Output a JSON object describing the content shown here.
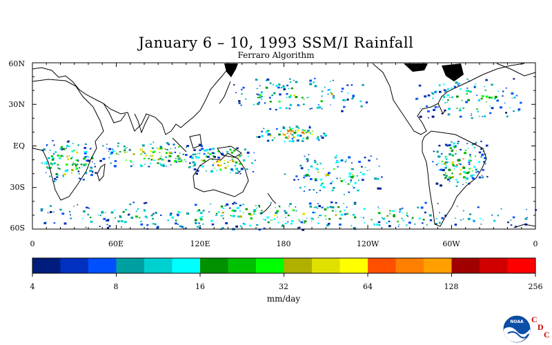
{
  "title": "January 6 – 10, 1993 SSM/I Rainfall",
  "subtitle": "Ferraro Algorithm",
  "map": {
    "projection": "cylindrical-equidistant",
    "lon_range": [
      0,
      360
    ],
    "lat_range": [
      -60,
      60
    ],
    "lat_ticks": [
      {
        "value": 60,
        "label": "60N"
      },
      {
        "value": 30,
        "label": "30N"
      },
      {
        "value": 0,
        "label": "EQ"
      },
      {
        "value": -30,
        "label": "30S"
      },
      {
        "value": -60,
        "label": "60S"
      }
    ],
    "lon_ticks": [
      {
        "value": 0,
        "label": "0"
      },
      {
        "value": 60,
        "label": "60E"
      },
      {
        "value": 120,
        "label": "120E"
      },
      {
        "value": 180,
        "label": "180"
      },
      {
        "value": 240,
        "label": "120W"
      },
      {
        "value": 300,
        "label": "60W"
      },
      {
        "value": 360,
        "label": "0"
      }
    ],
    "rain_regions": [
      {
        "name": "africa-equatorial",
        "lon": [
          5,
          45
        ],
        "lat": [
          -25,
          5
        ],
        "intensity": "moderate"
      },
      {
        "name": "indian-ocean-itcz",
        "lon": [
          45,
          130
        ],
        "lat": [
          -15,
          3
        ],
        "intensity": "moderate"
      },
      {
        "name": "maritime-continent",
        "lon": [
          110,
          160
        ],
        "lat": [
          -20,
          0
        ],
        "intensity": "moderate"
      },
      {
        "name": "central-pacific-itcz",
        "lon": [
          160,
          210
        ],
        "lat": [
          3,
          15
        ],
        "intensity": "high"
      },
      {
        "name": "spcz",
        "lon": [
          180,
          250
        ],
        "lat": [
          -35,
          -5
        ],
        "intensity": "light"
      },
      {
        "name": "south-america",
        "lon": [
          285,
          325
        ],
        "lat": [
          -30,
          5
        ],
        "intensity": "moderate"
      },
      {
        "name": "north-atlantic-storm-track",
        "lon": [
          270,
          350
        ],
        "lat": [
          20,
          50
        ],
        "intensity": "light"
      },
      {
        "name": "north-pacific-storm-track",
        "lon": [
          140,
          240
        ],
        "lat": [
          25,
          50
        ],
        "intensity": "light"
      },
      {
        "name": "southern-ocean",
        "lon": [
          0,
          360
        ],
        "lat": [
          -60,
          -40
        ],
        "intensity": "light"
      }
    ]
  },
  "colorbar": {
    "units": "mm/day",
    "labels": [
      "4",
      "8",
      "16",
      "32",
      "64",
      "128",
      "256"
    ],
    "colors": [
      "#001c7c",
      "#0030c0",
      "#0050ff",
      "#00a0a0",
      "#00d0d0",
      "#00ffff",
      "#009000",
      "#00c000",
      "#00ff00",
      "#b0b000",
      "#e0e000",
      "#ffff00",
      "#ff5000",
      "#ff8000",
      "#ffa000",
      "#a00000",
      "#d00000",
      "#ff0000"
    ]
  },
  "logo": {
    "noaa_text": "NOAA",
    "cdc_letters": [
      "C",
      "D",
      "C"
    ]
  }
}
